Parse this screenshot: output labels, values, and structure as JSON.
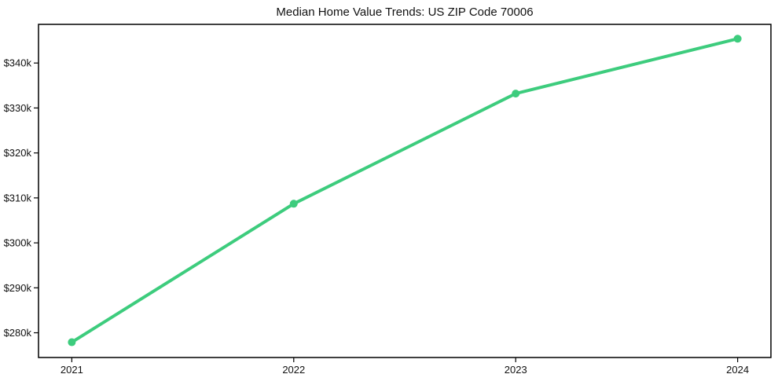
{
  "chart_data": {
    "type": "line",
    "title": "Median Home Value Trends: US ZIP Code 70006",
    "categories": [
      "2021",
      "2022",
      "2023",
      "2024"
    ],
    "values": [
      277900,
      308700,
      333200,
      345400
    ],
    "xlabel": "",
    "ylabel": "",
    "ylim": [
      274500,
      348600
    ],
    "yticks": [
      {
        "value": 280000,
        "label": "$280k"
      },
      {
        "value": 290000,
        "label": "$290k"
      },
      {
        "value": 300000,
        "label": "$300k"
      },
      {
        "value": 310000,
        "label": "$310k"
      },
      {
        "value": 320000,
        "label": "$320k"
      },
      {
        "value": 330000,
        "label": "$330k"
      },
      {
        "value": 340000,
        "label": "$340k"
      }
    ],
    "grid": false,
    "legend": false,
    "line_color": "#3dcc7d",
    "marker": "circle",
    "frame_color": "#000000",
    "background_color": "#ffffff"
  }
}
